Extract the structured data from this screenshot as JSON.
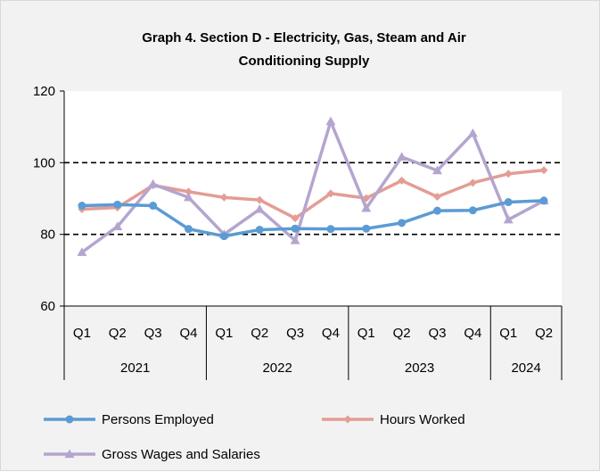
{
  "chart_data": {
    "type": "line",
    "title_line1": "Graph 4. Section D - Electricity, Gas, Steam and Air",
    "title_line2": "Conditioning Supply",
    "xlabel": "",
    "ylabel": "",
    "ylim": [
      60,
      120
    ],
    "yticks": [
      "60",
      "80",
      "100",
      "120"
    ],
    "gridlines_dashed_at": [
      80,
      100
    ],
    "categories": [
      "Q1",
      "Q2",
      "Q3",
      "Q4",
      "Q1",
      "Q2",
      "Q3",
      "Q4",
      "Q1",
      "Q2",
      "Q3",
      "Q4",
      "Q1",
      "Q2"
    ],
    "groups": [
      {
        "label": "2021",
        "count": 4
      },
      {
        "label": "2022",
        "count": 4
      },
      {
        "label": "2023",
        "count": 4
      },
      {
        "label": "2024",
        "count": 2
      }
    ],
    "legend_placement": "bottom",
    "series": [
      {
        "name": "Persons Employed",
        "color": "#5b9bd5",
        "marker": "circle",
        "values": [
          88,
          88.3,
          88,
          81.5,
          79.5,
          81.3,
          81.6,
          81.5,
          81.6,
          83.2,
          86.6,
          86.7,
          89,
          89.4
        ]
      },
      {
        "name": "Hours Worked",
        "color": "#e39d95",
        "marker": "diamond",
        "values": [
          87,
          87.5,
          93.7,
          91.9,
          90.3,
          89.6,
          84.5,
          91.4,
          90.1,
          95,
          90.5,
          94.4,
          96.9,
          97.9
        ]
      },
      {
        "name": "Gross Wages and Salaries",
        "color": "#b4a5cf",
        "marker": "triangle",
        "values": [
          75,
          82.2,
          94,
          90.3,
          80,
          87,
          78.3,
          111.5,
          87.3,
          101.6,
          97.8,
          108.2,
          84.1,
          89.4
        ]
      }
    ]
  }
}
